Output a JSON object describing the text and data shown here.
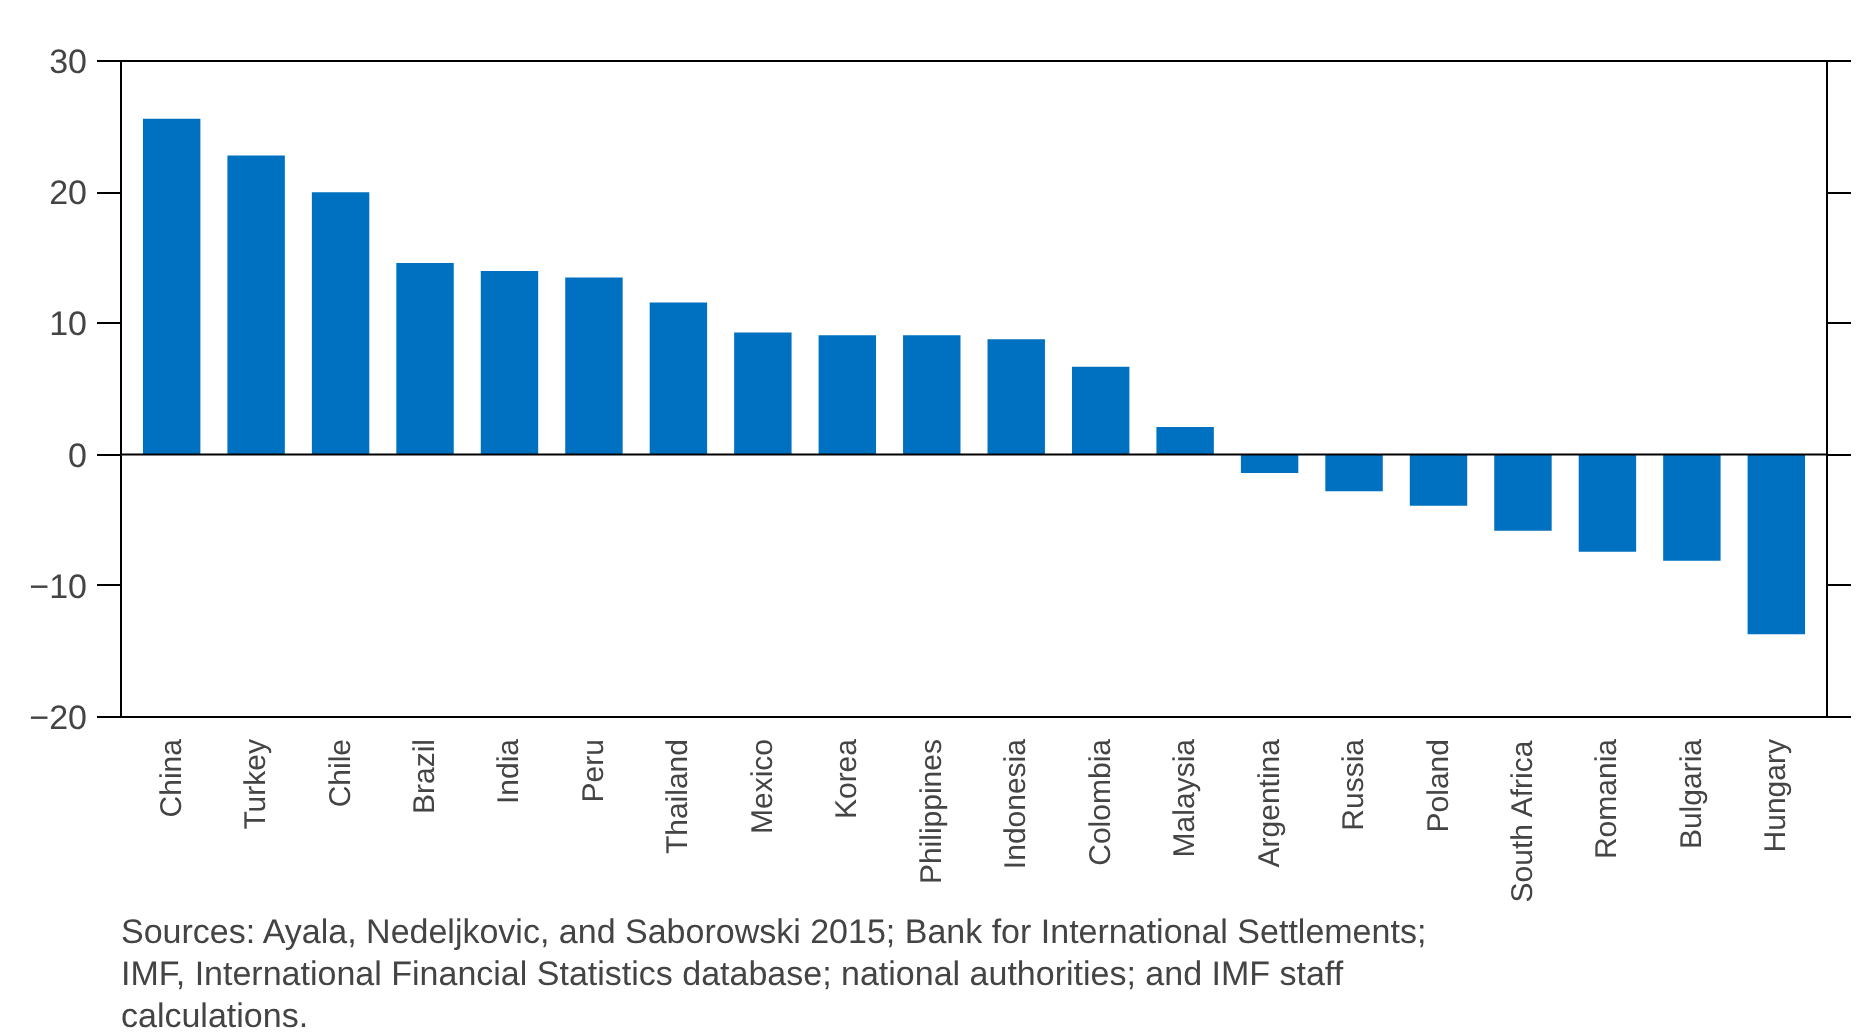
{
  "chart_data": {
    "type": "bar",
    "categories": [
      "China",
      "Turkey",
      "Chile",
      "Brazil",
      "India",
      "Peru",
      "Thailand",
      "Mexico",
      "Korea",
      "Philippines",
      "Indonesia",
      "Colombia",
      "Malaysia",
      "Argentina",
      "Russia",
      "Poland",
      "South Africa",
      "Romania",
      "Bulgaria",
      "Hungary"
    ],
    "values": [
      25.6,
      22.8,
      20.0,
      14.6,
      14.0,
      13.5,
      11.6,
      9.3,
      9.1,
      9.1,
      8.8,
      6.7,
      2.1,
      -1.4,
      -2.8,
      -3.9,
      -5.8,
      -7.4,
      -8.1,
      -13.7
    ],
    "color": "#0070c0",
    "ylim": [
      -20,
      30
    ],
    "yticks": [
      -20,
      -10,
      0,
      10,
      20,
      30
    ],
    "grid": false,
    "ref_lines": [
      {
        "axis": "y",
        "value": 0
      }
    ],
    "annotations": [
      "Sources: Ayala, Nedeljkovic, and Saborowski 2015; Bank for International Settlements; IMF, International Financial Statistics database; national authorities; and IMF staff calculations."
    ]
  }
}
